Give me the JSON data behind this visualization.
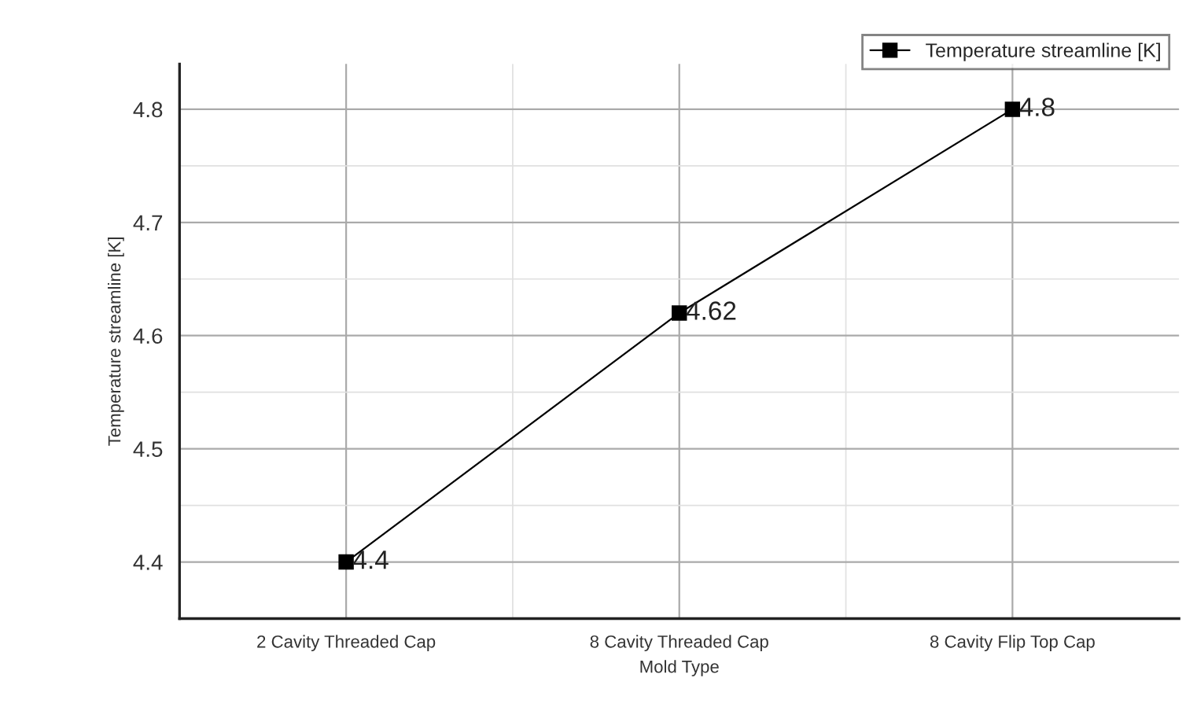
{
  "chart_data": {
    "type": "line",
    "xlabel": "Mold Type",
    "ylabel": "Temperature streamline [K]",
    "categories": [
      "2 Cavity Threaded Cap",
      "8 Cavity Threaded Cap",
      "8 Cavity Flip Top Cap"
    ],
    "series": [
      {
        "name": "Temperature streamline [K]",
        "color": "#000000",
        "values": [
          4.4,
          4.62,
          4.8
        ]
      }
    ],
    "ylim": [
      4.35,
      4.84
    ],
    "yticks": [
      4.4,
      4.5,
      4.6,
      4.7,
      4.8
    ],
    "data_labels": true,
    "grid": true,
    "legend": "top right",
    "marker": "square",
    "line_style": "solid"
  }
}
